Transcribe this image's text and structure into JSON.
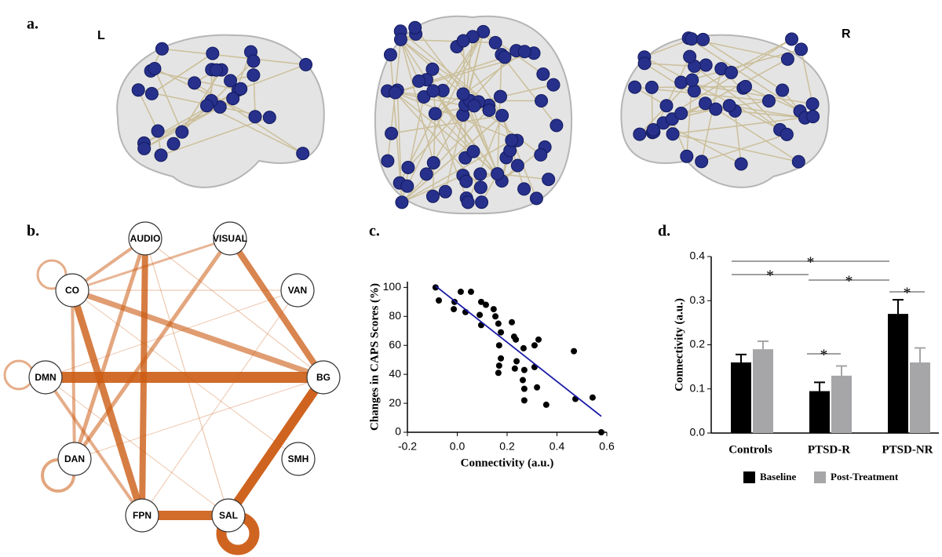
{
  "panels": {
    "a": "a.",
    "b": "b.",
    "c": "c.",
    "d": "d."
  },
  "brain": {
    "left": "L",
    "right": "R"
  },
  "network": {
    "nodes": [
      "AUDIO",
      "VISUAL",
      "VAN",
      "BG",
      "SMH",
      "SAL",
      "FPN",
      "DAN",
      "DMN",
      "CO"
    ]
  },
  "chart_data": [
    {
      "type": "scatter",
      "x_label": "Connectivity (a.u.)",
      "y_label": "Changes in CAPS Scores (%)",
      "x": [
        -0.087,
        -0.074,
        -0.011,
        0.014,
        0.055,
        -0.014,
        0.033,
        0.096,
        0.115,
        0.146,
        0.153,
        0.09,
        0.096,
        0.165,
        0.219,
        0.228,
        0.235,
        0.175,
        0.168,
        0.175,
        0.168,
        0.165,
        0.266,
        0.326,
        0.31,
        0.238,
        0.231,
        0.269,
        0.263,
        0.269,
        0.269,
        0.31,
        0.32,
        0.357,
        0.468,
        0.474,
        0.543,
        0.578
      ],
      "values": [
        100,
        91,
        90,
        97,
        97,
        85,
        83,
        90,
        88,
        85,
        80,
        81,
        74,
        75,
        76,
        66,
        64,
        69,
        60,
        51,
        46,
        41,
        58,
        64,
        60,
        49,
        44,
        43,
        36,
        30,
        22,
        45,
        31,
        19,
        56,
        23,
        24,
        0
      ],
      "color": "#000000",
      "fit_line": {
        "x": [
          -0.087,
          0.578
        ],
        "values": [
          101,
          11
        ],
        "color": "#1a1aa6"
      },
      "xlim": [
        -0.2,
        0.6
      ],
      "xticks": [
        -0.2,
        {
          "value": 0,
          "label": "0.0"
        },
        0.2,
        0.4,
        0.6
      ],
      "ylim": [
        0,
        104
      ],
      "yticks": [
        0,
        20,
        40,
        60,
        80,
        100
      ]
    },
    {
      "type": "bar",
      "y_label": "Connectivity (a.u.)",
      "categories": [
        "Controls",
        "PTSD-R",
        "PTSD-NR"
      ],
      "series": [
        {
          "name": "Baseline",
          "color": "#000000",
          "values": [
            0.16,
            0.095,
            0.27
          ],
          "errors": [
            0.018,
            0.02,
            0.032
          ]
        },
        {
          "name": "Post-Treatment",
          "color": "#a6a6a8",
          "values": [
            0.19,
            0.13,
            0.16
          ],
          "errors": [
            0.018,
            0.022,
            0.033
          ]
        }
      ],
      "ylim": [
        0,
        0.4
      ],
      "yticks": [
        {
          "value": 0,
          "label": "0.0"
        },
        0.1,
        0.2,
        0.3,
        0.4
      ],
      "annotations": [
        "*",
        "*",
        "*",
        "*",
        "*"
      ],
      "legend": "bottom"
    }
  ]
}
